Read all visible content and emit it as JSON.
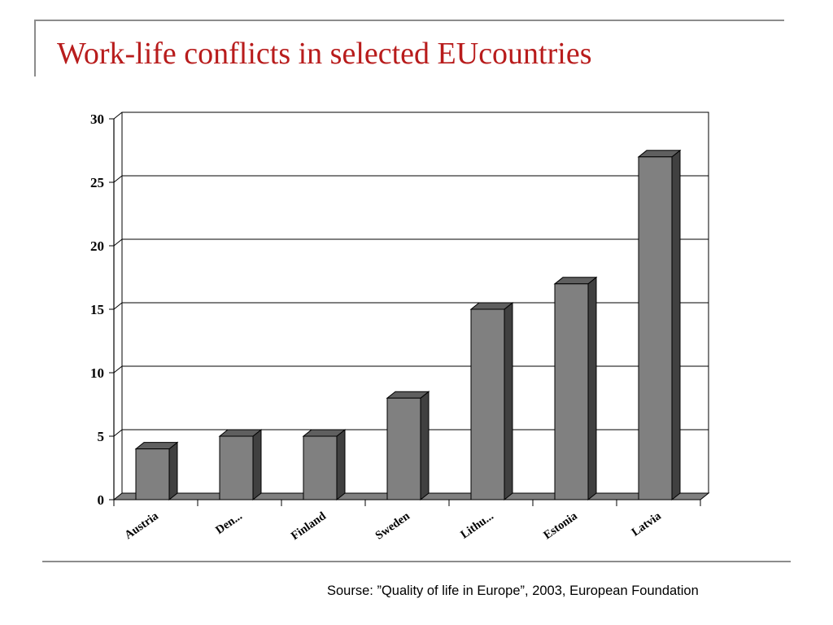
{
  "slide": {
    "title": "Work-life conflicts in selected EUcountries",
    "source": "Sourse: ”Quality of life in Europe”, 2003, European Foundation"
  },
  "chart_data": {
    "type": "bar",
    "title": "",
    "xlabel": "",
    "ylabel": "",
    "categories": [
      "Austria",
      "Den...",
      "Finland",
      "Sweden",
      "Lithu...",
      "Estonia",
      "Latvia"
    ],
    "values": [
      4,
      5,
      5,
      8,
      15,
      17,
      27
    ],
    "ylim": [
      0,
      30
    ],
    "yticks": [
      0,
      5,
      10,
      15,
      20,
      25,
      30
    ],
    "grid": true,
    "style": "3d",
    "colors": {
      "bar_front": "#808080",
      "bar_top": "#5f5f5f",
      "bar_side": "#404040",
      "floor": "#808080"
    }
  }
}
